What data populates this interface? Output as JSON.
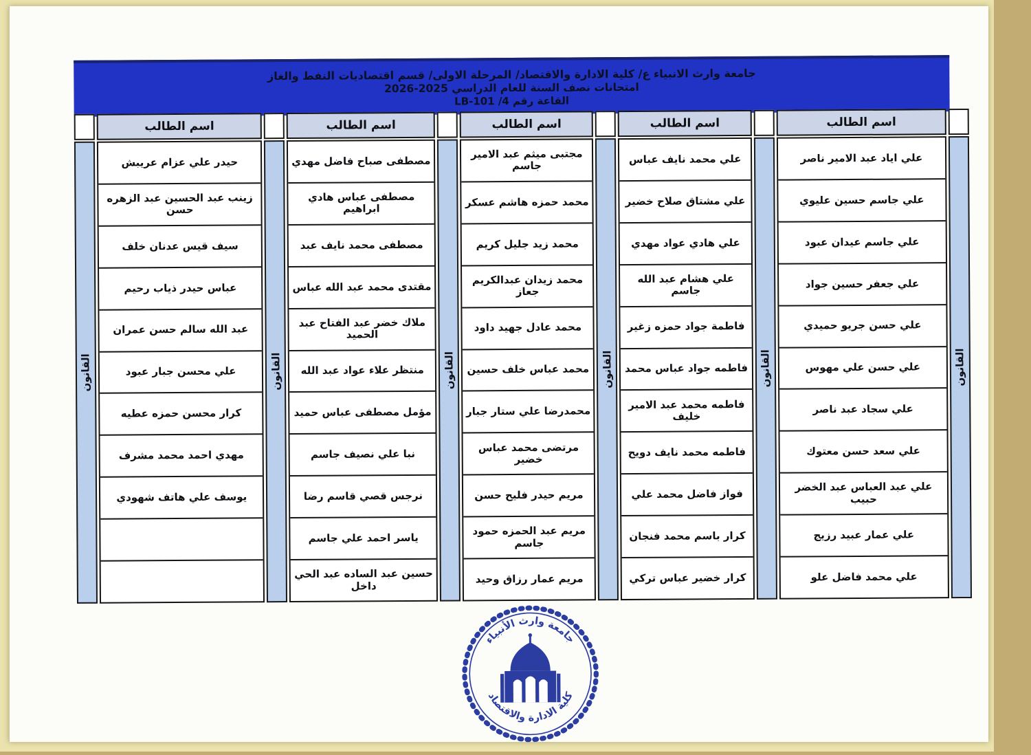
{
  "banner": {
    "line1": "جامعة وارث الانبياء ع/ كلية الادارة والاقتصاد/ المرحلة الاولى/ قسم اقتصاديات النفط والغاز",
    "line2": "امتحانات نصف السنة للعام الدراسي 2025‏-‏2026",
    "line3": "القاعة رقم 4‏/ LB-101"
  },
  "table_header": "اسم الطالب",
  "subject": "القانون",
  "groups": [
    {
      "students": [
        "علي اياد عبد الامير ناصر",
        "علي جاسم حسين عليوي",
        "علي جاسم عيدان عبود",
        "علي جعفر حسين جواد",
        "علي حسن جريو حميدي",
        "علي حسن علي مهوس",
        "علي سجاد عبد ناصر",
        "علي سعد حسن معتوك",
        "علي عبد العباس عبد الخضر حبيب",
        "علي عمار عبيد رزيج",
        "علي محمد فاضل علو"
      ]
    },
    {
      "students": [
        "علي محمد نايف عباس",
        "علي مشتاق صلاح خضير",
        "علي هادي عواد مهدي",
        "علي هشام عبد الله جاسم",
        "فاطمة جواد حمزه زغير",
        "فاطمه جواد عباس محمد",
        "فاطمه محمد عبد الامير خليف",
        "فاطمه محمد نايف دويح",
        "فواز فاضل محمد علي",
        "كرار باسم محمد فنجان",
        "كرار خضير عباس تركي"
      ]
    },
    {
      "students": [
        "مجتبى ميثم عبد الامير جاسم",
        "محمد حمزه هاشم عسكر",
        "محمد زيد جليل كريم",
        "محمد زيدان عبدالكريم جعاز",
        "محمد عادل جهيد داود",
        "محمد عباس خلف حسين",
        "محمدرضا علي ستار جبار",
        "مرتضى محمد عباس خضير",
        "مريم حيدر فليح حسن",
        "مريم عبد الحمزه حمود جاسم",
        "مريم عمار رزاق وحيد"
      ]
    },
    {
      "students": [
        "مصطفى صباح فاضل مهدي",
        "مصطفى عباس هادي ابراهيم",
        "مصطفى محمد نايف عبد",
        "مقتدى محمد عبد الله عباس",
        "ملاك خضر عبد الفتاح عبد الحميد",
        "منتظر علاء عواد عبد الله",
        "مؤمل مصطفى عباس حميد",
        "نبا علي نصيف جاسم",
        "نرجس قصي قاسم رضا",
        "ياسر احمد علي جاسم",
        "حسين عبد الساده عبد الحي داخل"
      ]
    },
    {
      "students": [
        "حيدر علي عزام عريبش",
        "زينب عبد الحسين عبد الزهره حسن",
        "سيف قيس عدنان خلف",
        "عباس حيدر ذياب رحيم",
        "عبد الله سالم حسن عمران",
        "علي محسن جبار عبود",
        "كرار محسن حمزه عطيه",
        "مهدي احمد محمد مشرف",
        "يوسف علي هاتف شهودي",
        "",
        ""
      ]
    }
  ],
  "seal": {
    "top": "جامعة وارث الأنبياء",
    "bottom": "كلية الادارة والاقتصاد"
  },
  "colors": {
    "banner_blue": "#2133c4",
    "banner_border": "#18246f",
    "header_cell_blue": "#ccd5e7",
    "strip_blue": "#b9cfec",
    "table_border": "#141414",
    "paper": "#fcfcf9",
    "under_sheet_yellow": "#ebe3ad",
    "background_tan": "#c3ac74",
    "seal_blue": "#2b3da0"
  }
}
